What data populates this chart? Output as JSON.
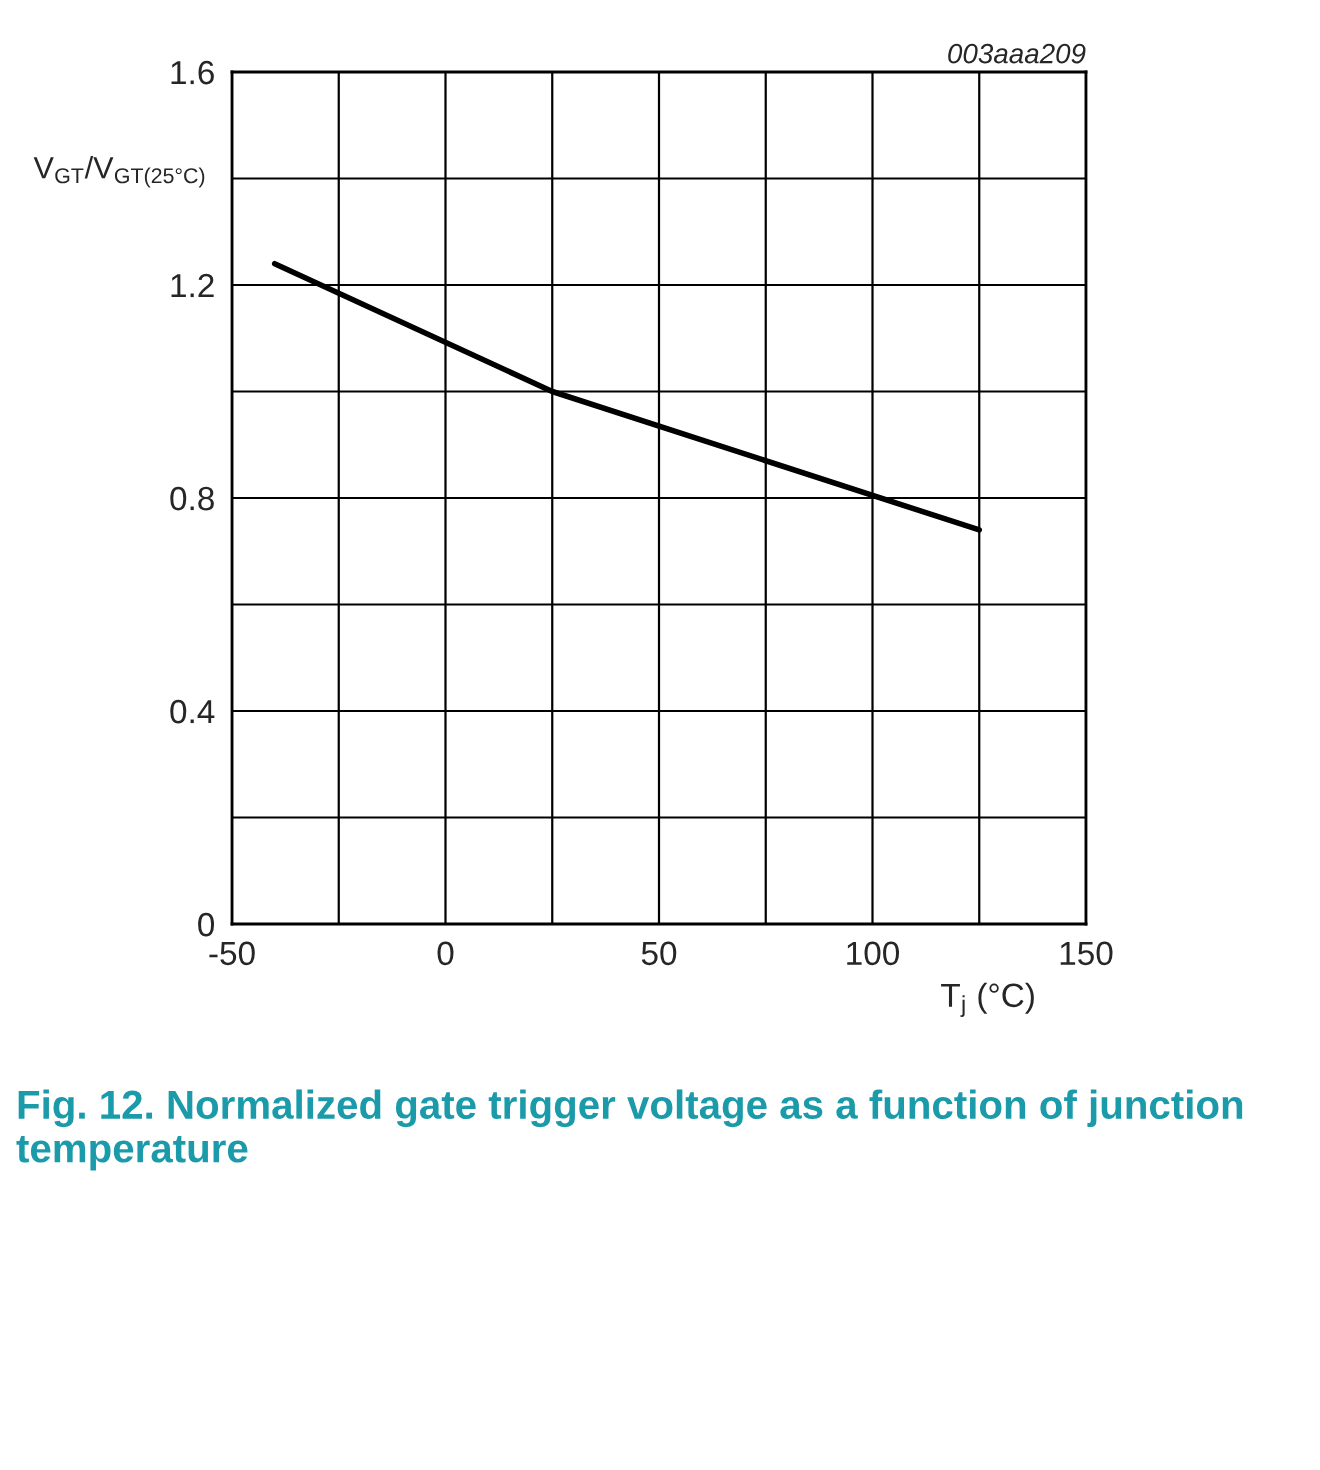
{
  "chart_data": {
    "type": "line",
    "title": "Fig. 12. Normalized gate trigger voltage as a function of junction temperature",
    "xlabel": "T$_{j}$ (°C)",
    "ylabel": "V$_{GT}$/V$_{GT(25°C)}$",
    "annotations": [
      "003aaa209"
    ],
    "x": [
      -40,
      25,
      125
    ],
    "series": [
      {
        "color": "#000000",
        "values": [
          1.24,
          1.0,
          0.74
        ]
      }
    ],
    "xlim": [
      -50,
      150
    ],
    "xticks": [
      -50,
      {
        "value": -25,
        "label": null
      },
      0,
      {
        "value": 25,
        "label": null
      },
      50,
      {
        "value": 75,
        "label": null
      },
      100,
      {
        "value": 125,
        "label": null
      },
      150
    ],
    "ylim": [
      0,
      1.6
    ],
    "yticks": [
      0,
      {
        "value": 0.2,
        "label": null
      },
      0.4,
      {
        "value": 0.6,
        "label": null
      },
      0.8,
      {
        "value": 1.0,
        "label": null
      },
      1.2,
      {
        "value": 1.4,
        "label": null
      },
      1.6
    ],
    "grid": true,
    "line_style": "solid",
    "marker": "none"
  }
}
